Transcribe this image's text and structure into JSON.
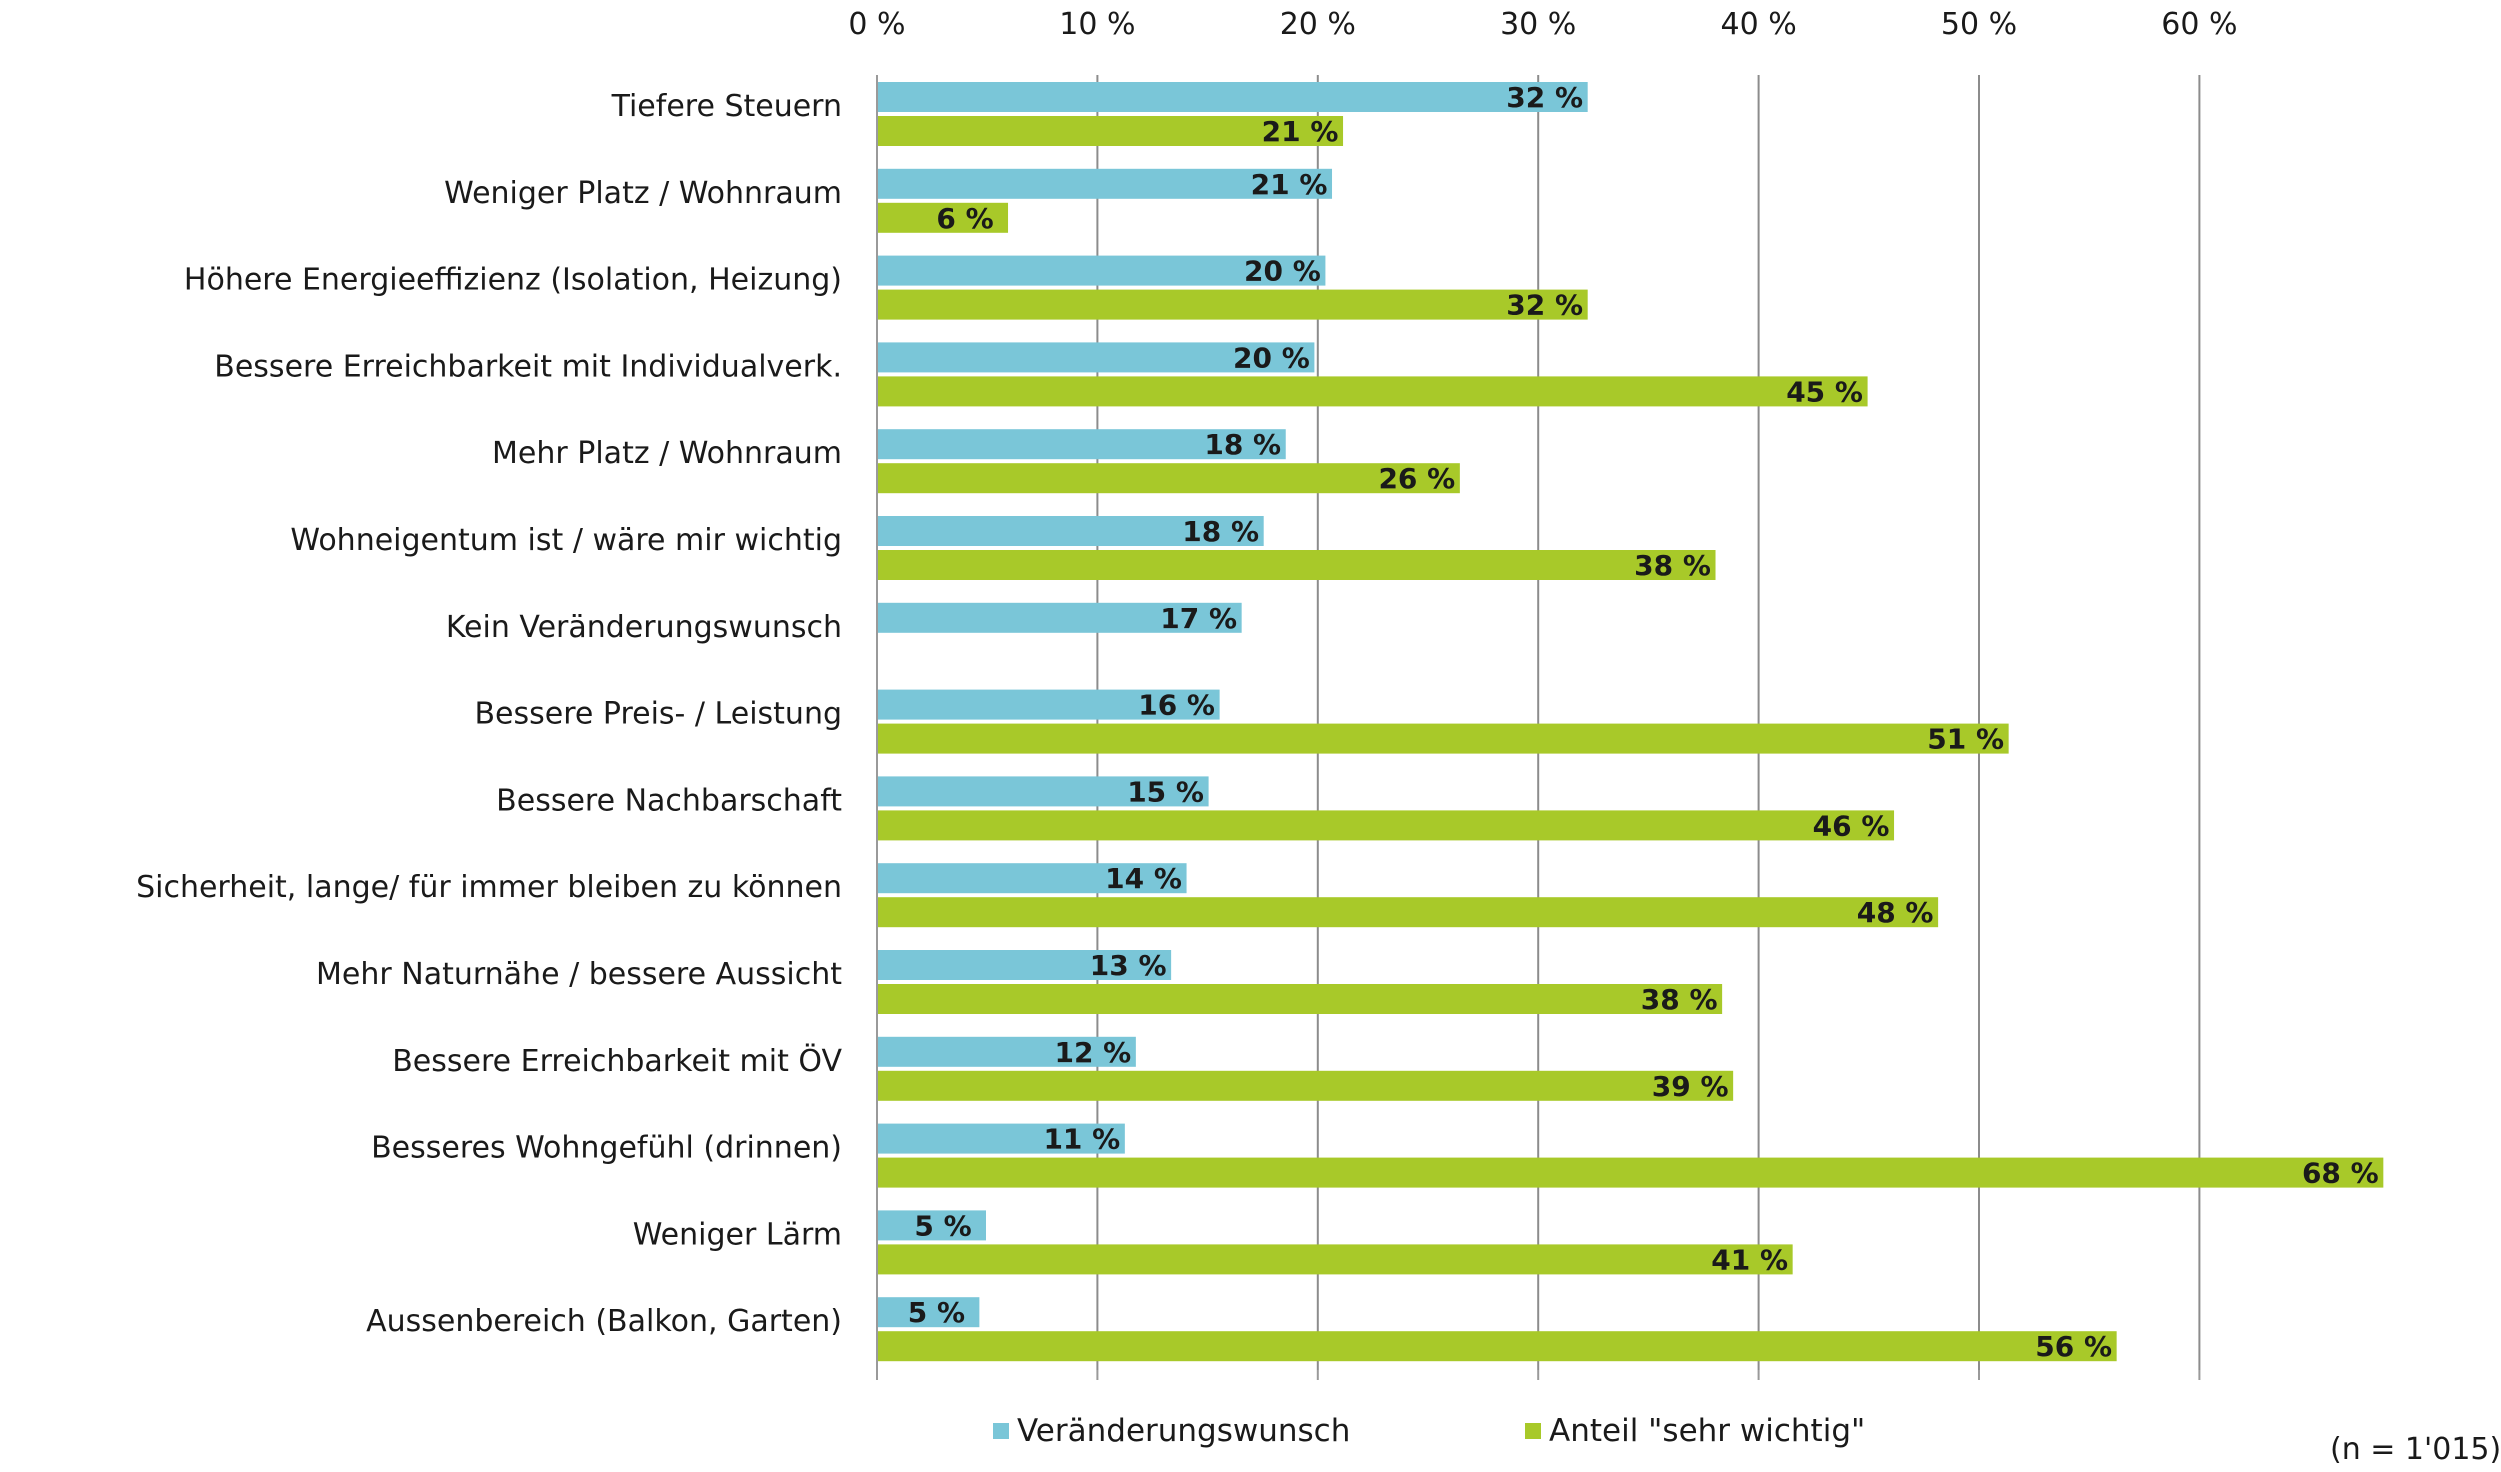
{
  "chart_data": {
    "type": "bar",
    "orientation": "horizontal",
    "categories": [
      "Tiefere Steuern",
      "Weniger Platz / Wohnraum",
      "Höhere Energieeffizienz (Isolation, Heizung)",
      "Bessere Erreichbarkeit mit Individualverk.",
      "Mehr Platz / Wohnraum",
      "Wohneigentum ist / wäre mir wichtig",
      "Kein Veränderungswunsch",
      "Bessere Preis- / Leistung",
      "Bessere Nachbarschaft",
      "Sicherheit, lange/ für immer bleiben zu können",
      "Mehr Naturnähe / bessere Aussicht",
      "Bessere Erreichbarkeit mit ÖV",
      "Besseres Wohngefühl (drinnen)",
      "Weniger Lärm",
      "Aussenbereich (Balkon, Garten)"
    ],
    "series": [
      {
        "name": "Veränderungswunsch",
        "color": "#7ac6d8",
        "values": [
          32.2,
          20.6,
          20.3,
          19.8,
          18.5,
          17.5,
          16.5,
          15.5,
          15.0,
          14.0,
          13.3,
          11.7,
          11.2,
          4.9,
          4.6
        ],
        "labels": [
          "32 %",
          "21 %",
          "20 %",
          "20 %",
          "18 %",
          "18 %",
          "17 %",
          "16 %",
          "15 %",
          "14 %",
          "13 %",
          "12 %",
          "11 %",
          "5 %",
          "5 %"
        ]
      },
      {
        "name": "Anteil \"sehr wichtig\"",
        "color": "#a8c929",
        "values": [
          21.1,
          5.9,
          32.2,
          44.9,
          26.4,
          38.0,
          null,
          51.3,
          46.1,
          48.1,
          38.3,
          38.8,
          68.3,
          41.5,
          56.2
        ],
        "labels": [
          "21 %",
          "6 %",
          "32 %",
          "45 %",
          "26 %",
          "38 %",
          "",
          "51 %",
          "46 %",
          "48 %",
          "38 %",
          "39 %",
          "68 %",
          "41 %",
          "56 %"
        ]
      }
    ],
    "x_ticks": [
      "0 %",
      "10 %",
      "20 %",
      "30 %",
      "40 %",
      "50 %",
      "60 %"
    ],
    "xlim": [
      0,
      68.5
    ],
    "grid": true,
    "legend_position": "bottom",
    "note": "(n = 1'015)"
  },
  "legend": {
    "series1": "Veränderungswunsch",
    "series2": "Anteil \"sehr wichtig\""
  }
}
